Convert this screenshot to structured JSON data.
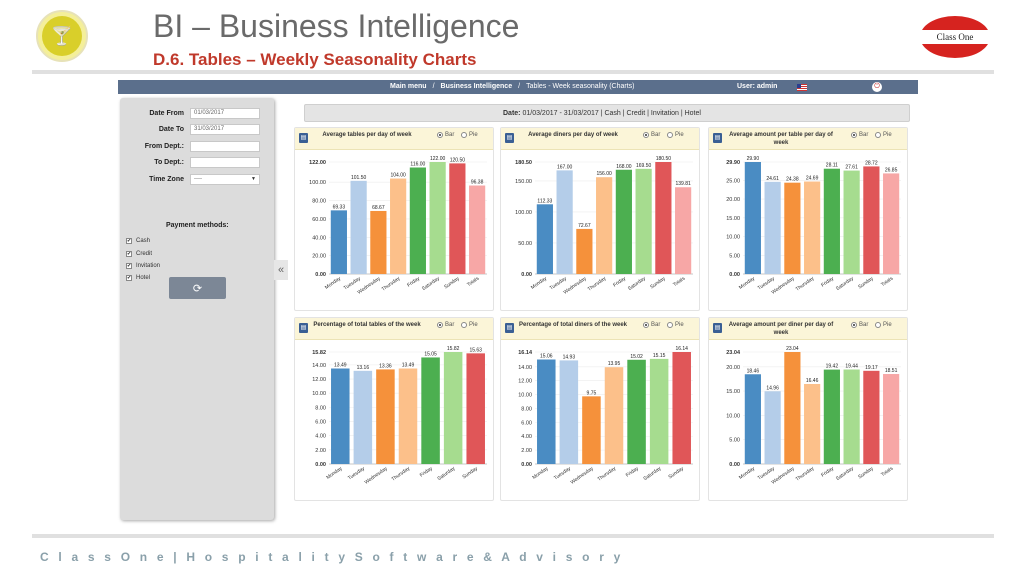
{
  "slide": {
    "title": "BI – Business Intelligence",
    "subtitle": "D.6. Tables – Weekly Seasonality Charts",
    "brand_right": "Class One",
    "footer": "C l a s s O n e | H o s p i t a l i t y S o f t w a r e & A d v i s o r y"
  },
  "topbar": {
    "crumbs": [
      "Main menu",
      "Business Intelligence",
      "Tables - Week seasonality (Charts)"
    ],
    "separator": "/",
    "user": "User: admin"
  },
  "filters": {
    "date_from": {
      "label": "Date From",
      "value": "01/03/2017"
    },
    "date_to": {
      "label": "Date To",
      "value": "31/03/2017"
    },
    "from_dept": {
      "label": "From Dept.:",
      "value": ""
    },
    "to_dept": {
      "label": "To Dept.:",
      "value": ""
    },
    "time_zone": {
      "label": "Time Zone",
      "value": "----"
    },
    "payment_title": "Payment methods:",
    "payment_methods": [
      "Cash",
      "Credit",
      "Invitation",
      "Hotel"
    ],
    "collapse_glyph": "«"
  },
  "filter_bar": {
    "label": "Date:",
    "text": " 01/03/2017 - 31/03/2017 | Cash | Credit | Invitation | Hotel"
  },
  "toggle": {
    "bar": "Bar",
    "pie": "Pie"
  },
  "colors": [
    "#4a8cc3",
    "#b4cde9",
    "#f5913b",
    "#fcc08a",
    "#4caf50",
    "#a6dc8f",
    "#e05658",
    "#f7a7a6"
  ],
  "chart_data": [
    {
      "type": "bar",
      "title": "Average tables per day of week",
      "categories": [
        "Monday",
        "Tuesday",
        "Wednesday",
        "Thursday",
        "Friday",
        "Saturday",
        "Sunday",
        "Totals"
      ],
      "values": [
        69.33,
        101.5,
        68.67,
        104.0,
        116.0,
        122.0,
        120.5,
        96.38
      ],
      "value_labels": [
        "69.33",
        "101.50",
        "68.67",
        "104.00",
        "116.00",
        "122.00",
        "120.50",
        "96.38"
      ],
      "yticks": [
        "0.00",
        "20.00",
        "40.00",
        "60.00",
        "80.00",
        "100.00",
        "122.00"
      ],
      "ylim": [
        0,
        122
      ]
    },
    {
      "type": "bar",
      "title": "Average diners per day of week",
      "categories": [
        "Monday",
        "Tuesday",
        "Wednesday",
        "Thursday",
        "Friday",
        "Saturday",
        "Sunday",
        "Totals"
      ],
      "values": [
        112.33,
        167.0,
        72.67,
        156.0,
        168.0,
        169.5,
        180.5,
        139.81
      ],
      "value_labels": [
        "112.33",
        "167.00",
        "72.67",
        "156.00",
        "168.00",
        "169.50",
        "180.50",
        "139.81"
      ],
      "yticks": [
        "0.00",
        "50.00",
        "100.00",
        "150.00",
        "180.50"
      ],
      "ylim": [
        0,
        180.5
      ]
    },
    {
      "type": "bar",
      "title": "Average amount per table per day of week",
      "categories": [
        "Monday",
        "Tuesday",
        "Wednesday",
        "Thursday",
        "Friday",
        "Saturday",
        "Sunday",
        "Totals"
      ],
      "values": [
        29.9,
        24.61,
        24.38,
        24.69,
        28.11,
        27.61,
        28.72,
        26.85
      ],
      "value_labels": [
        "29.90",
        "24.61",
        "24.38",
        "24.69",
        "28.11",
        "27.61",
        "28.72",
        "26.85"
      ],
      "yticks": [
        "0.00",
        "5.00",
        "10.00",
        "15.00",
        "20.00",
        "25.00",
        "29.90"
      ],
      "ylim": [
        0,
        29.9
      ]
    },
    {
      "type": "bar",
      "title": "Percentage of total tables of the week",
      "categories": [
        "Monday",
        "Tuesday",
        "Wednesday",
        "Thursday",
        "Friday",
        "Saturday",
        "Sunday"
      ],
      "values": [
        13.49,
        13.16,
        13.36,
        13.49,
        15.05,
        15.82,
        15.63
      ],
      "value_labels": [
        "13.49",
        "13.16",
        "13.36",
        "13.49",
        "15.05",
        "15.82",
        "15.63"
      ],
      "yticks": [
        "0.00",
        "2.00",
        "4.00",
        "6.00",
        "8.00",
        "10.00",
        "12.00",
        "14.00",
        "15.82"
      ],
      "ylim": [
        0,
        15.82
      ]
    },
    {
      "type": "bar",
      "title": "Percentage of total diners of the week",
      "categories": [
        "Monday",
        "Tuesday",
        "Wednesday",
        "Thursday",
        "Friday",
        "Saturday",
        "Sunday"
      ],
      "values": [
        15.06,
        14.93,
        9.75,
        13.95,
        15.02,
        15.15,
        16.14
      ],
      "value_labels": [
        "15.06",
        "14.93",
        "9.75",
        "13.95",
        "15.02",
        "15.15",
        "16.14"
      ],
      "yticks": [
        "0.00",
        "2.00",
        "4.00",
        "6.00",
        "8.00",
        "10.00",
        "12.00",
        "14.00",
        "16.14"
      ],
      "ylim": [
        0,
        16.14
      ]
    },
    {
      "type": "bar",
      "title": "Average amount per diner per day of week",
      "categories": [
        "Monday",
        "Tuesday",
        "Wednesday",
        "Thursday",
        "Friday",
        "Saturday",
        "Sunday",
        "Totals"
      ],
      "values": [
        18.46,
        14.96,
        23.04,
        16.46,
        19.42,
        19.44,
        19.17,
        18.51
      ],
      "value_labels": [
        "18.46",
        "14.96",
        "23.04",
        "16.46",
        "19.42",
        "19.44",
        "19.17",
        "18.51"
      ],
      "yticks": [
        "0.00",
        "5.00",
        "10.00",
        "15.00",
        "20.00",
        "23.04"
      ],
      "ylim": [
        0,
        23.04
      ]
    }
  ]
}
